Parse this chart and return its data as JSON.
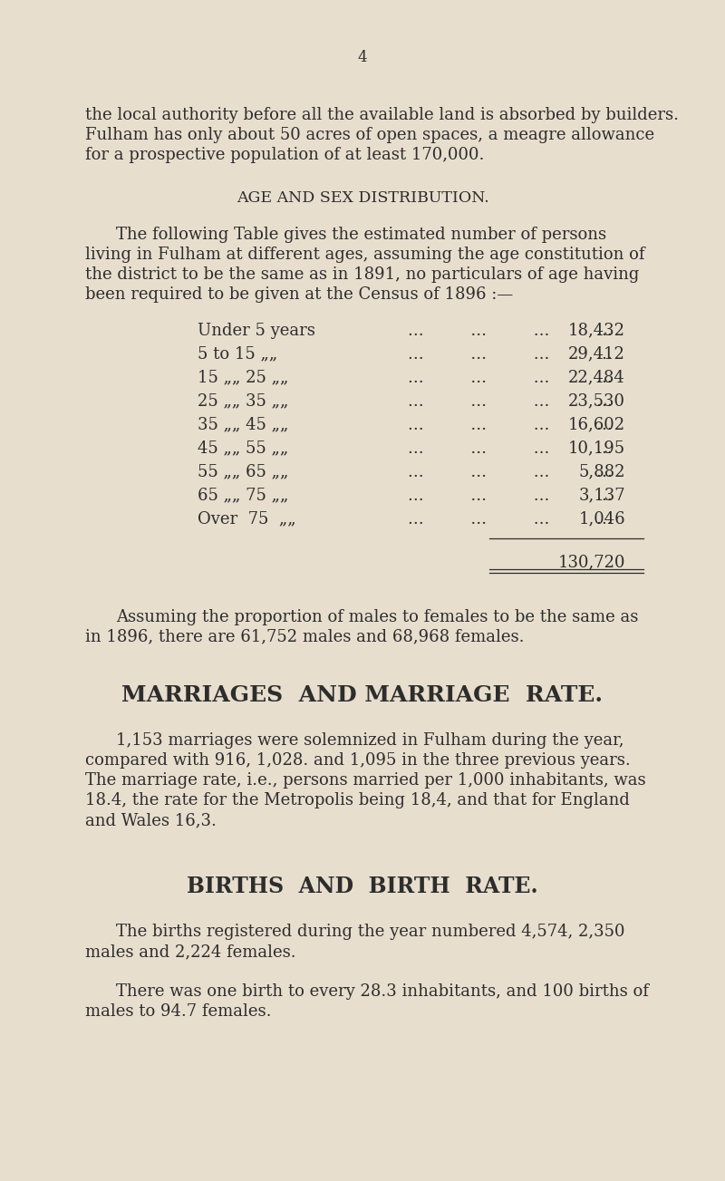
{
  "background_color": "#e8dece",
  "text_color": "#2d2d2d",
  "page_number": "4",
  "para1": "the local authority before all the available land is absorbed by builders.",
  "para2": "Fulham has only about 50 acres of open spaces, a meagre allowance",
  "para3": "for a prospective population of at least 170,000.",
  "section1_title": "AGE AND SEX DISTRIBUTION.",
  "section1_intro1": "The following Table gives the estimated number of persons",
  "section1_intro2": "living in Fulham at different ages, assuming the age constitution of",
  "section1_intro3": "the district to be the same as in 1891, no particulars of age having",
  "section1_intro4": "been required to be given at the Census of 1896 :—",
  "table_rows": [
    [
      "Under 5 years",
      "18,432"
    ],
    [
      "5 to 15 „„",
      "29,412"
    ],
    [
      "15 „„ 25 „„",
      "22,484"
    ],
    [
      "25 „„ 35 „„",
      "23,530"
    ],
    [
      "35 „„ 45 „„",
      "16,602"
    ],
    [
      "45 „„ 55 „„",
      "10,195"
    ],
    [
      "55 „„ 65 „„",
      "5,882"
    ],
    [
      "65 „„ 75 „„",
      "3,137"
    ],
    [
      "Over  75  „„",
      "1,046"
    ]
  ],
  "table_total": "130,720",
  "section1_post1": "Assuming the proportion of males to females to be the same as",
  "section1_post2": "in 1896, there are 61,752 males and 68,968 females.",
  "section2_title": "MARRIAGES  AND MARRIAGE  RATE.",
  "section2_para1": "1,153 marriages were solemnized in Fulham during the year,",
  "section2_para2": "compared with 916, 1,028. and 1,095 in the three previous years.",
  "section2_para3": "The marriage rate, i.e., persons married per 1,000 inhabitants, was",
  "section2_para4": "18.4, the rate for the Metropolis being 18,4, and that for England",
  "section2_para5": "and Wales 16,3.",
  "section3_title": "BIRTHS  AND  BIRTH  RATE.",
  "section3_para1": "The births registered during the year numbered 4,574, 2,350",
  "section3_para2": "males and 2,224 females.",
  "section3_para3": "There was one birth to every 28.3 inhabitants, and 100 births of",
  "section3_para4": "males to 94.7 females."
}
